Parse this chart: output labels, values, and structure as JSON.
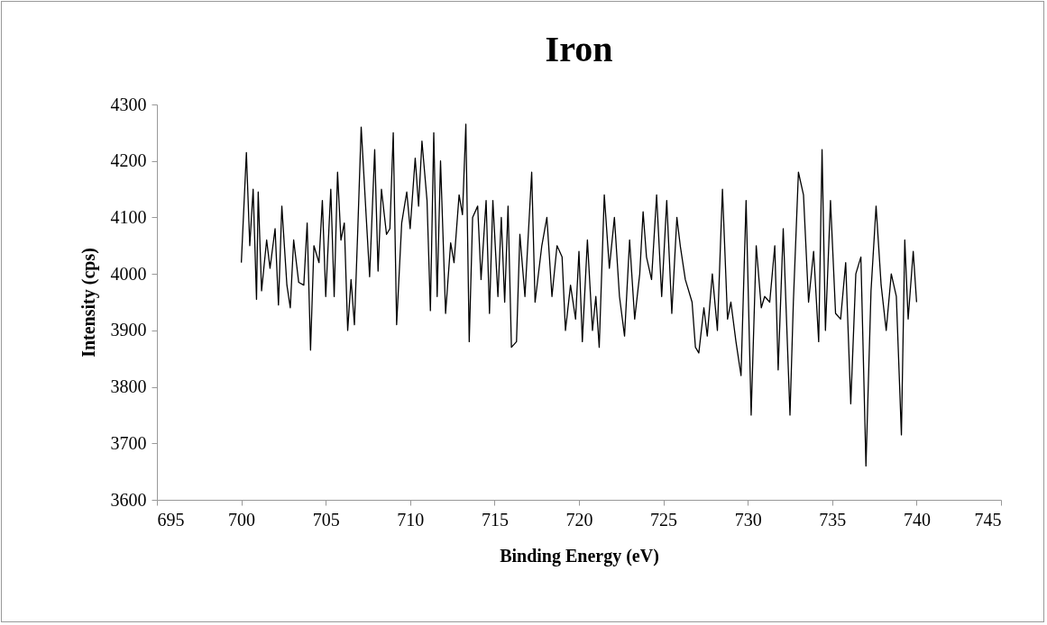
{
  "chart_data": {
    "type": "line",
    "title": "Iron",
    "xlabel": "Binding Energy (eV)",
    "ylabel": "Intensity (cps)",
    "xlim": [
      695,
      745
    ],
    "xticks": [
      695,
      700,
      705,
      710,
      715,
      720,
      725,
      730,
      735,
      740,
      745
    ],
    "ylim": [
      3600,
      4300
    ],
    "yticks": [
      3600,
      3700,
      3800,
      3900,
      4000,
      4100,
      4200,
      4300
    ],
    "series": [
      {
        "color": "#000000",
        "x": [
          700.0,
          700.3,
          700.5,
          700.7,
          700.9,
          701.0,
          701.2,
          701.5,
          701.7,
          702.0,
          702.2,
          702.4,
          702.7,
          702.9,
          703.1,
          703.4,
          703.7,
          703.9,
          704.1,
          704.3,
          704.6,
          704.8,
          705.0,
          705.3,
          705.5,
          705.7,
          705.9,
          706.1,
          706.3,
          706.5,
          706.7,
          706.9,
          707.1,
          707.4,
          707.6,
          707.9,
          708.1,
          708.3,
          708.6,
          708.8,
          709.0,
          709.2,
          709.5,
          709.8,
          710.0,
          710.3,
          710.5,
          710.7,
          711.0,
          711.2,
          711.4,
          711.6,
          711.8,
          712.1,
          712.4,
          712.6,
          712.9,
          713.1,
          713.3,
          713.5,
          713.7,
          714.0,
          714.2,
          714.5,
          714.7,
          714.9,
          715.2,
          715.4,
          715.6,
          715.8,
          716.0,
          716.3,
          716.5,
          716.8,
          717.2,
          717.4,
          717.8,
          718.1,
          718.4,
          718.7,
          719.0,
          719.2,
          719.5,
          719.8,
          720.0,
          720.2,
          720.5,
          720.8,
          721.0,
          721.2,
          721.5,
          721.8,
          722.1,
          722.4,
          722.7,
          723.0,
          723.3,
          723.6,
          723.8,
          724.0,
          724.3,
          724.6,
          724.9,
          725.2,
          725.5,
          725.8,
          726.0,
          726.3,
          726.7,
          726.9,
          727.1,
          727.4,
          727.6,
          727.9,
          728.2,
          728.5,
          728.8,
          729.0,
          729.3,
          729.6,
          729.9,
          730.2,
          730.5,
          730.8,
          731.0,
          731.3,
          731.6,
          731.8,
          732.1,
          732.5,
          732.7,
          733.0,
          733.3,
          733.6,
          733.9,
          734.2,
          734.4,
          734.6,
          734.9,
          735.2,
          735.5,
          735.8,
          736.1,
          736.4,
          736.7,
          737.0,
          737.3,
          737.6,
          737.9,
          738.2,
          738.5,
          738.8,
          739.1,
          739.3,
          739.5,
          739.8,
          740.0
        ],
        "values": [
          4020,
          4215,
          4050,
          4150,
          3955,
          4145,
          3970,
          4060,
          4010,
          4080,
          3945,
          4120,
          3980,
          3940,
          4060,
          3985,
          3980,
          4090,
          3865,
          4050,
          4020,
          4130,
          3960,
          4150,
          3960,
          4180,
          4060,
          4090,
          3900,
          3990,
          3910,
          4080,
          4260,
          4100,
          3995,
          4220,
          4005,
          4150,
          4070,
          4080,
          4250,
          3910,
          4090,
          4145,
          4080,
          4205,
          4120,
          4235,
          4130,
          3935,
          4250,
          3960,
          4200,
          3930,
          4055,
          4020,
          4140,
          4105,
          4265,
          3880,
          4100,
          4120,
          3990,
          4130,
          3930,
          4130,
          3960,
          4100,
          3950,
          4120,
          3870,
          3880,
          4070,
          3960,
          4180,
          3950,
          4050,
          4100,
          3960,
          4050,
          4030,
          3900,
          3980,
          3920,
          4040,
          3880,
          4060,
          3900,
          3960,
          3870,
          4140,
          4010,
          4100,
          3960,
          3890,
          4060,
          3920,
          4000,
          4110,
          4030,
          3990,
          4140,
          3960,
          4130,
          3930,
          4100,
          4050,
          3990,
          3950,
          3870,
          3860,
          3940,
          3890,
          4000,
          3900,
          4150,
          3920,
          3950,
          3880,
          3820,
          4130,
          3750,
          4050,
          3940,
          3960,
          3950,
          4050,
          3830,
          4080,
          3750,
          3950,
          4180,
          4140,
          3950,
          4040,
          3880,
          4220,
          3900,
          4130,
          3930,
          3920,
          4020,
          3770,
          4000,
          4030,
          3660,
          3970,
          4120,
          3980,
          3900,
          4000,
          3960,
          3715,
          4060,
          3920,
          4040,
          3950
        ]
      }
    ]
  }
}
